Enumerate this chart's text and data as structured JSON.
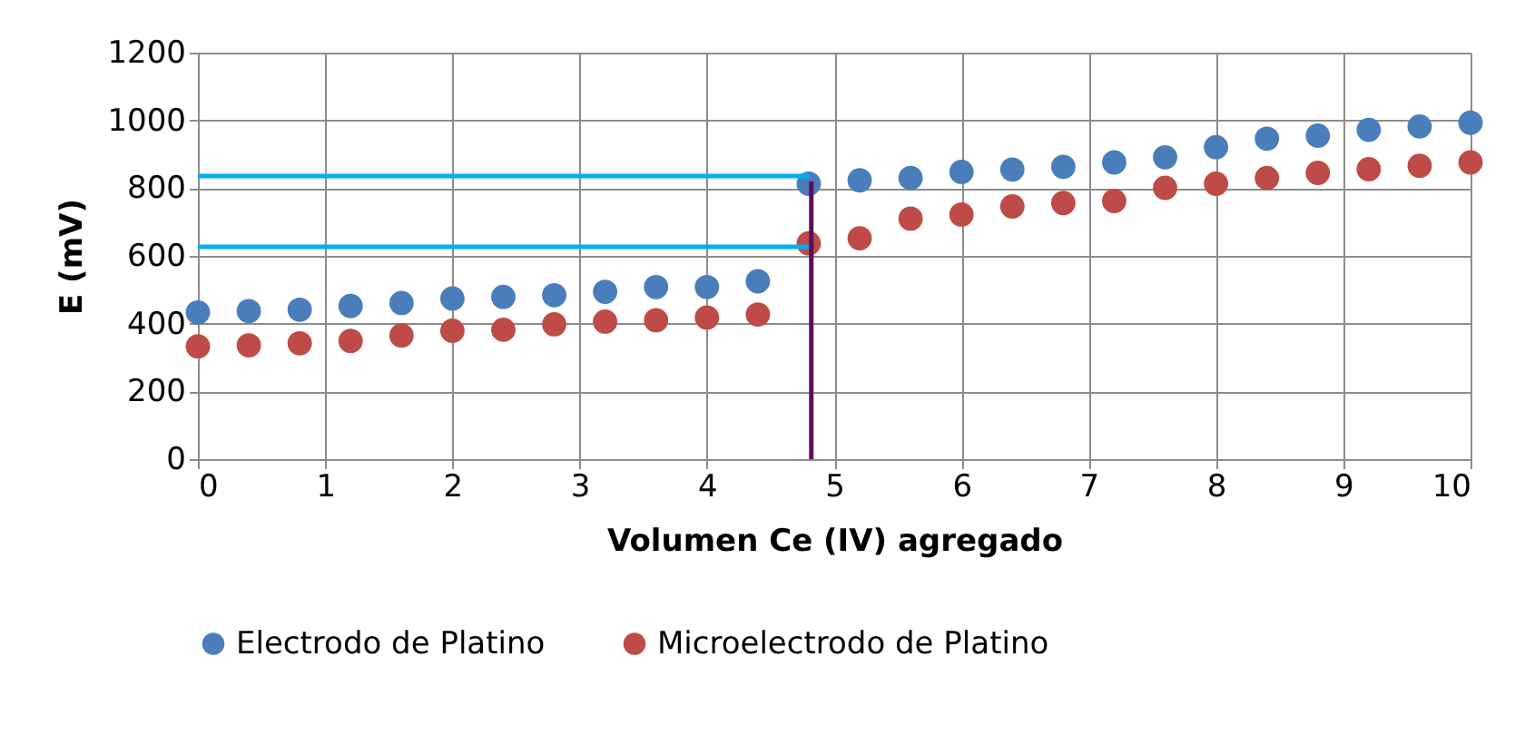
{
  "chart_data": {
    "type": "scatter",
    "xlabel": "Volumen  Ce (IV) agregado",
    "ylabel": "E (mV)",
    "x": [
      0,
      0.4,
      0.8,
      1.2,
      1.6,
      2,
      2.4,
      2.8,
      3.2,
      3.6,
      4,
      4.4,
      4.8,
      5.2,
      5.6,
      6,
      6.4,
      6.8,
      7.2,
      7.6,
      8,
      8.4,
      8.8,
      9.2,
      9.6,
      10
    ],
    "series": [
      {
        "name": "Electrodo de Platino",
        "color": "#4a7ebb",
        "values": [
          433,
          437,
          441,
          452,
          461,
          474,
          479,
          484,
          494,
          508,
          508,
          525,
          813,
          823,
          830,
          848,
          855,
          863,
          876,
          891,
          921,
          946,
          955,
          972,
          982,
          993
        ]
      },
      {
        "name": "Microelectrodo de Platino",
        "color": "#be4b48",
        "values": [
          333,
          336,
          342,
          349,
          365,
          379,
          382,
          398,
          406,
          410,
          418,
          427,
          637,
          652,
          710,
          722,
          746,
          756,
          762,
          801,
          813,
          830,
          845,
          856,
          866,
          876
        ]
      },
      {
        "type": "line",
        "marker": "none",
        "color": "#00b0f0",
        "x": [
          0,
          4.8
        ],
        "values": [
          836,
          836
        ]
      },
      {
        "type": "line",
        "marker": "none",
        "color": "#00b0f0",
        "x": [
          0,
          4.8
        ],
        "values": [
          627,
          627
        ]
      },
      {
        "type": "line",
        "marker": "none",
        "color": "#5c0f5c",
        "x": [
          4.82,
          4.82
        ],
        "values": [
          0,
          820
        ]
      }
    ],
    "xlim": [
      0,
      10
    ],
    "xticks": [
      0,
      1,
      2,
      3,
      4,
      5,
      6,
      7,
      8,
      9,
      10
    ],
    "ylim": [
      0,
      1200
    ],
    "yticks": [
      0,
      200,
      400,
      600,
      800,
      1000,
      1200
    ],
    "grid": true,
    "legend": "bottom",
    "marker": "circle"
  }
}
